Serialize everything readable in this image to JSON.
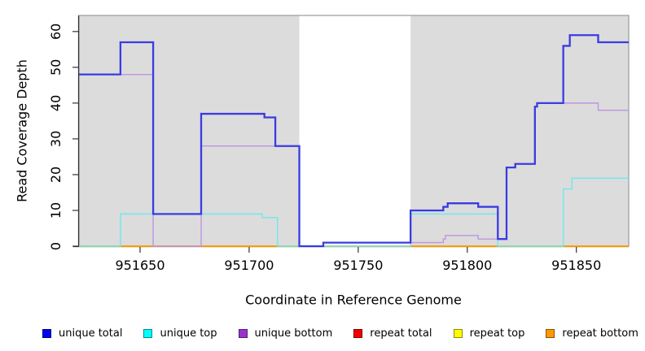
{
  "axes": {
    "x_label": "Coordinate in Reference Genome",
    "y_label": "Read Coverage Depth"
  },
  "chart_data": {
    "type": "line",
    "line_style": "step",
    "title": "",
    "xlabel": "Coordinate in Reference Genome",
    "ylabel": "Read Coverage Depth",
    "xlim": [
      951622,
      951874
    ],
    "ylim": [
      0,
      64.5
    ],
    "x_ticks": [
      951650,
      951700,
      951750,
      951800,
      951850
    ],
    "y_ticks": [
      0,
      10,
      20,
      30,
      40,
      50,
      60
    ],
    "grid": false,
    "panel_background": "#dcdcdc",
    "panel_border_color": "#999999",
    "axis_color": "#333333",
    "highlight_band": {
      "x_from": 951723,
      "x_to": 951774,
      "color": "#ffffff"
    },
    "legend_position": "bottom",
    "series": [
      {
        "name": "repeat total",
        "color": "#dd1100",
        "width": 1.4,
        "x": [
          951622
        ],
        "values": [
          0
        ]
      },
      {
        "name": "repeat top",
        "color": "#ffff00",
        "width": 1.4,
        "x": [
          951622
        ],
        "values": [
          0
        ]
      },
      {
        "name": "repeat bottom",
        "color": "#ff9d00",
        "width": 1.8,
        "x": [
          951622
        ],
        "values": [
          0
        ]
      },
      {
        "name": "unique bottom",
        "color": "#bf94e0",
        "width": 1.4,
        "x": [
          951622,
          951656,
          951678,
          951723,
          951734,
          951789,
          951790,
          951805,
          951818,
          951822,
          951831,
          951832,
          951860
        ],
        "values": [
          48,
          0,
          28,
          0,
          1,
          2,
          3,
          2,
          22,
          23,
          39,
          40,
          38
        ]
      },
      {
        "name": "unique top",
        "color": "#6fe9ea",
        "width": 1.4,
        "x": [
          951622,
          951641,
          951706,
          951713,
          951774,
          951814,
          951844,
          951848
        ],
        "values": [
          0,
          9,
          8,
          0,
          9,
          0,
          16,
          19
        ]
      },
      {
        "name": "unique total",
        "color": "#3b3be2",
        "width": 2.3,
        "x": [
          951622,
          951641,
          951656,
          951678,
          951707,
          951712,
          951723,
          951734,
          951774,
          951789,
          951791,
          951805,
          951814,
          951818,
          951822,
          951831,
          951832,
          951844,
          951847,
          951860
        ],
        "values": [
          48,
          57,
          9,
          37,
          36,
          28,
          0,
          1,
          10,
          11,
          12,
          11,
          2,
          22,
          23,
          39,
          40,
          56,
          59,
          57
        ]
      }
    ],
    "legend": [
      {
        "label": "unique total",
        "color": "#0000ee"
      },
      {
        "label": "unique top",
        "color": "#00ffff"
      },
      {
        "label": "unique bottom",
        "color": "#9a32cd"
      },
      {
        "label": "repeat total",
        "color": "#ee0000"
      },
      {
        "label": "repeat top",
        "color": "#ffff00"
      },
      {
        "label": "repeat bottom",
        "color": "#ff9800"
      }
    ]
  }
}
